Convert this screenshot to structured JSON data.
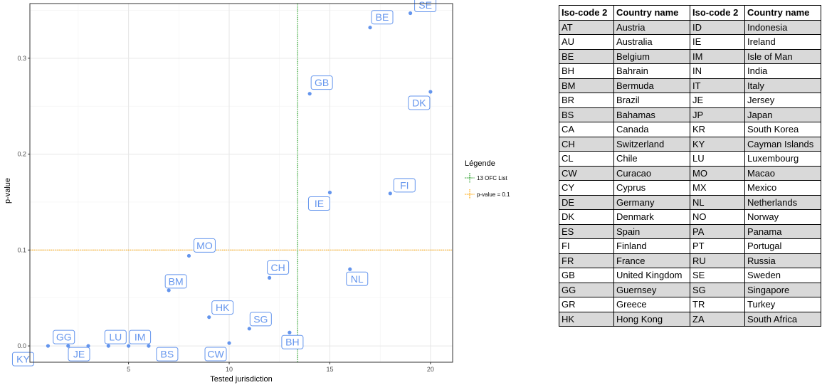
{
  "chart_data": {
    "type": "scatter",
    "xlabel": "Tested jurisdiction",
    "ylabel": "p-value",
    "xlim": [
      0.1,
      21.1
    ],
    "ylim": [
      -0.017,
      0.357
    ],
    "xticks": [
      5,
      10,
      15,
      20
    ],
    "yticks": [
      0.0,
      0.1,
      0.2,
      0.3
    ],
    "xtick_labels": [
      "5",
      "10",
      "15",
      "20"
    ],
    "ytick_labels": [
      "0.0",
      "0.1",
      "0.2",
      "0.3"
    ],
    "grid": true,
    "point_color": "#6495ED",
    "points": [
      {
        "label": "KY",
        "x": 1,
        "y": 0.0
      },
      {
        "label": "GG",
        "x": 2,
        "y": 0.0
      },
      {
        "label": "JE",
        "x": 3,
        "y": 0.0
      },
      {
        "label": "LU",
        "x": 4,
        "y": 0.0
      },
      {
        "label": "IM",
        "x": 5,
        "y": 0.0
      },
      {
        "label": "BS",
        "x": 6,
        "y": 0.0
      },
      {
        "label": "BM",
        "x": 7,
        "y": 0.058
      },
      {
        "label": "MO",
        "x": 8,
        "y": 0.094
      },
      {
        "label": "HK",
        "x": 9,
        "y": 0.03
      },
      {
        "label": "CW",
        "x": 10,
        "y": 0.003
      },
      {
        "label": "SG",
        "x": 11,
        "y": 0.018
      },
      {
        "label": "CH",
        "x": 12,
        "y": 0.071
      },
      {
        "label": "BH",
        "x": 13,
        "y": 0.014
      },
      {
        "label": "GB",
        "x": 14,
        "y": 0.263
      },
      {
        "label": "IE",
        "x": 15,
        "y": 0.16
      },
      {
        "label": "NL",
        "x": 16,
        "y": 0.08
      },
      {
        "label": "BE",
        "x": 17,
        "y": 0.332
      },
      {
        "label": "FI",
        "x": 18,
        "y": 0.159
      },
      {
        "label": "SE",
        "x": 19,
        "y": 0.347
      },
      {
        "label": "DK",
        "x": 20,
        "y": 0.265
      }
    ],
    "vline": {
      "x": 13.4,
      "color": "#2ca02c",
      "label": "13 OFC List"
    },
    "hline": {
      "y": 0.1,
      "color": "#FFA500",
      "label": "p-value = 0.1"
    },
    "legend": {
      "title": "Légende",
      "placement": "right"
    }
  },
  "table": {
    "headers": [
      "Iso-code 2",
      "Country name",
      "Iso-code 2",
      "Country name"
    ],
    "rows": [
      [
        "AT",
        "Austria",
        "ID",
        "Indonesia"
      ],
      [
        "AU",
        "Australia",
        "IE",
        "Ireland"
      ],
      [
        "BE",
        "Belgium",
        "IM",
        "Isle of Man"
      ],
      [
        "BH",
        "Bahrain",
        "IN",
        "India"
      ],
      [
        "BM",
        "Bermuda",
        "IT",
        "Italy"
      ],
      [
        "BR",
        "Brazil",
        "JE",
        "Jersey"
      ],
      [
        "BS",
        "Bahamas",
        "JP",
        "Japan"
      ],
      [
        "CA",
        "Canada",
        "KR",
        "South Korea"
      ],
      [
        "CH",
        "Switzerland",
        "KY",
        "Cayman Islands"
      ],
      [
        "CL",
        "Chile",
        "LU",
        "Luxembourg"
      ],
      [
        "CW",
        "Curacao",
        "MO",
        "Macao"
      ],
      [
        "CY",
        "Cyprus",
        "MX",
        "Mexico"
      ],
      [
        "DE",
        "Germany",
        "NL",
        "Netherlands"
      ],
      [
        "DK",
        "Denmark",
        "NO",
        "Norway"
      ],
      [
        "ES",
        "Spain",
        "PA",
        "Panama"
      ],
      [
        "FI",
        "Finland",
        "PT",
        "Portugal"
      ],
      [
        "FR",
        "France",
        "RU",
        "Russia"
      ],
      [
        "GB",
        "United Kingdom",
        "SE",
        "Sweden"
      ],
      [
        "GG",
        "Guernsey",
        "SG",
        "Singapore"
      ],
      [
        "GR",
        "Greece",
        "TR",
        "Turkey"
      ],
      [
        "HK",
        "Hong Kong",
        "ZA",
        "South Africa"
      ]
    ]
  }
}
